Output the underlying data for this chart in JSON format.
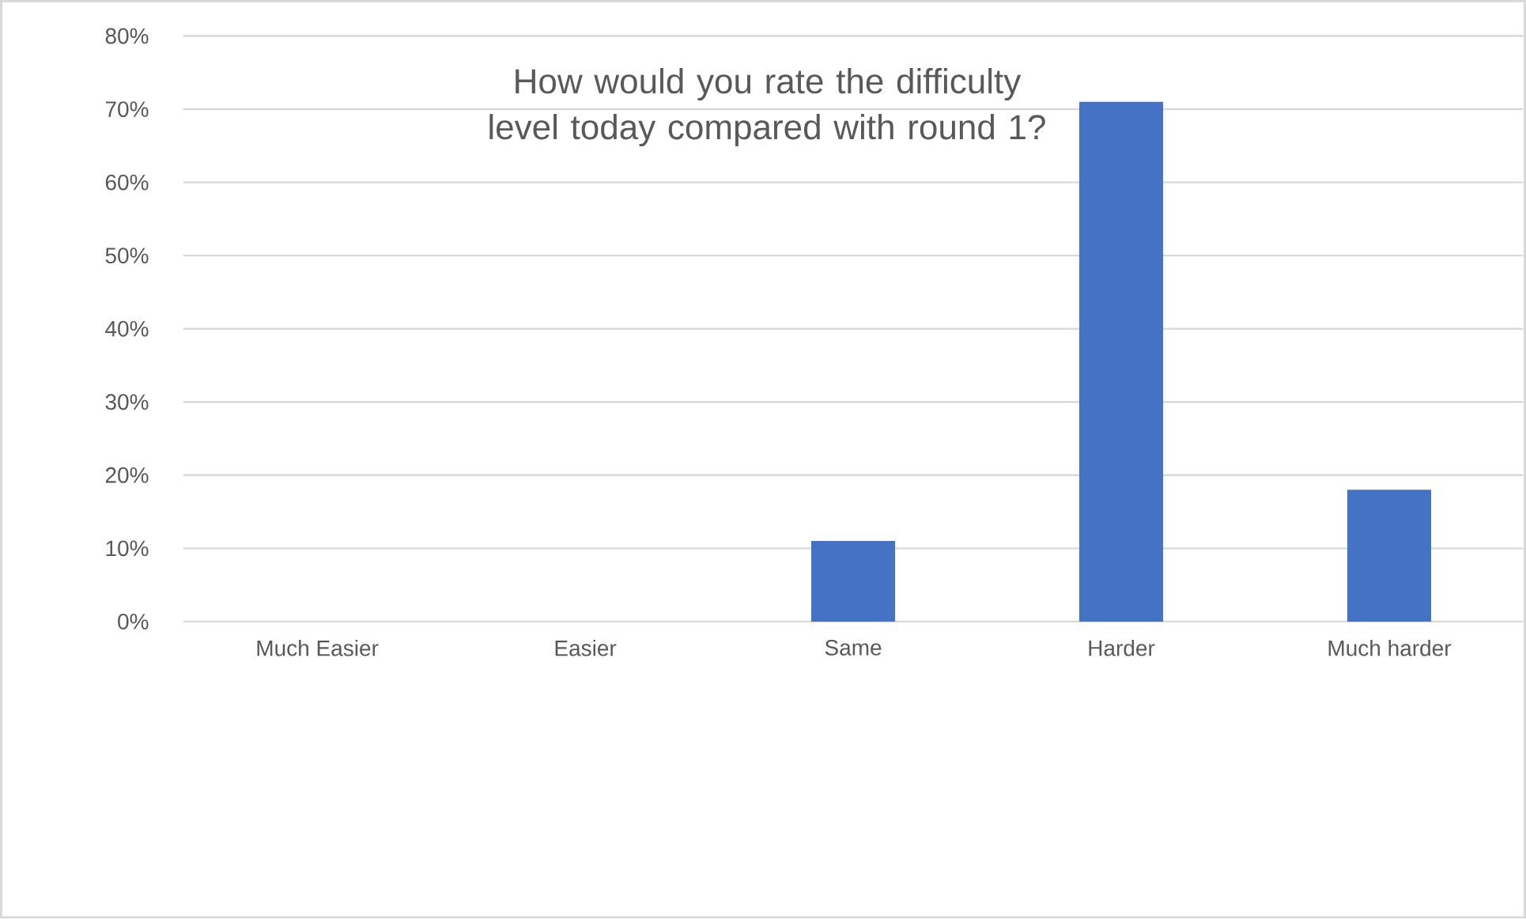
{
  "chart_data": {
    "type": "bar",
    "title": "How would you rate the difficulty level today compared with round 1?",
    "categories": [
      "Much Easier",
      "Easier",
      "Same",
      "Harder",
      "Much harder"
    ],
    "values": [
      0,
      0,
      11,
      71,
      18
    ],
    "color": "#4472c4",
    "ylim": [
      0,
      80
    ],
    "yticks": [
      {
        "value": 0,
        "label": "0%"
      },
      {
        "value": 10,
        "label": "10%"
      },
      {
        "value": 20,
        "label": "20%"
      },
      {
        "value": 30,
        "label": "30%"
      },
      {
        "value": 40,
        "label": "40%"
      },
      {
        "value": 50,
        "label": "50%"
      },
      {
        "value": 60,
        "label": "60%"
      },
      {
        "value": 70,
        "label": "70%"
      },
      {
        "value": 80,
        "label": "80%"
      }
    ],
    "grid": "y"
  }
}
